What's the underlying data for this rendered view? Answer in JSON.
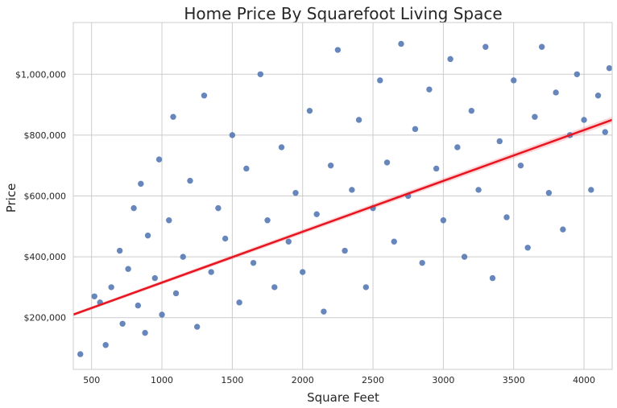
{
  "chart_data": {
    "type": "scatter",
    "title": "Home Price By Squarefoot Living Space",
    "xlabel": "Square Feet",
    "ylabel": "Price",
    "xlim": [
      370,
      4200
    ],
    "ylim": [
      30000,
      1170000
    ],
    "x_ticks": [
      500,
      1000,
      1500,
      2000,
      2500,
      3000,
      3500,
      4000
    ],
    "y_ticks": [
      200000,
      400000,
      600000,
      800000,
      1000000
    ],
    "y_tick_labels": [
      "$200,000",
      "$400,000",
      "$600,000",
      "$800,000",
      "$1,000,000"
    ],
    "grid": true,
    "series": [
      {
        "kind": "scatter",
        "color": "#4c72b0",
        "points": [
          [
            420,
            80000
          ],
          [
            520,
            270000
          ],
          [
            560,
            250000
          ],
          [
            600,
            110000
          ],
          [
            640,
            300000
          ],
          [
            700,
            420000
          ],
          [
            720,
            180000
          ],
          [
            760,
            360000
          ],
          [
            800,
            560000
          ],
          [
            830,
            240000
          ],
          [
            850,
            640000
          ],
          [
            880,
            150000
          ],
          [
            900,
            470000
          ],
          [
            950,
            330000
          ],
          [
            980,
            720000
          ],
          [
            1000,
            210000
          ],
          [
            1050,
            520000
          ],
          [
            1080,
            860000
          ],
          [
            1100,
            280000
          ],
          [
            1150,
            400000
          ],
          [
            1200,
            650000
          ],
          [
            1250,
            170000
          ],
          [
            1300,
            930000
          ],
          [
            1350,
            350000
          ],
          [
            1400,
            560000
          ],
          [
            1450,
            460000
          ],
          [
            1500,
            800000
          ],
          [
            1550,
            250000
          ],
          [
            1600,
            690000
          ],
          [
            1650,
            380000
          ],
          [
            1700,
            1000000
          ],
          [
            1750,
            520000
          ],
          [
            1800,
            300000
          ],
          [
            1850,
            760000
          ],
          [
            1900,
            450000
          ],
          [
            1950,
            610000
          ],
          [
            2000,
            350000
          ],
          [
            2050,
            880000
          ],
          [
            2100,
            540000
          ],
          [
            2150,
            220000
          ],
          [
            2200,
            700000
          ],
          [
            2250,
            1080000
          ],
          [
            2300,
            420000
          ],
          [
            2350,
            620000
          ],
          [
            2400,
            850000
          ],
          [
            2450,
            300000
          ],
          [
            2500,
            560000
          ],
          [
            2550,
            980000
          ],
          [
            2600,
            710000
          ],
          [
            2650,
            450000
          ],
          [
            2700,
            1100000
          ],
          [
            2750,
            600000
          ],
          [
            2800,
            820000
          ],
          [
            2850,
            380000
          ],
          [
            2900,
            950000
          ],
          [
            2950,
            690000
          ],
          [
            3000,
            520000
          ],
          [
            3050,
            1050000
          ],
          [
            3100,
            760000
          ],
          [
            3150,
            400000
          ],
          [
            3200,
            880000
          ],
          [
            3250,
            620000
          ],
          [
            3300,
            1090000
          ],
          [
            3350,
            330000
          ],
          [
            3400,
            780000
          ],
          [
            3450,
            530000
          ],
          [
            3500,
            980000
          ],
          [
            3550,
            700000
          ],
          [
            3600,
            430000
          ],
          [
            3650,
            860000
          ],
          [
            3700,
            1090000
          ],
          [
            3750,
            610000
          ],
          [
            3800,
            940000
          ],
          [
            3850,
            490000
          ],
          [
            3900,
            800000
          ],
          [
            3950,
            1000000
          ],
          [
            4000,
            850000
          ],
          [
            4050,
            620000
          ],
          [
            4100,
            930000
          ],
          [
            4150,
            810000
          ],
          [
            4180,
            1020000
          ]
        ]
      },
      {
        "kind": "regression",
        "color": "#e8141f",
        "x": [
          370,
          4200
        ],
        "y": [
          210000,
          850000
        ]
      }
    ]
  }
}
